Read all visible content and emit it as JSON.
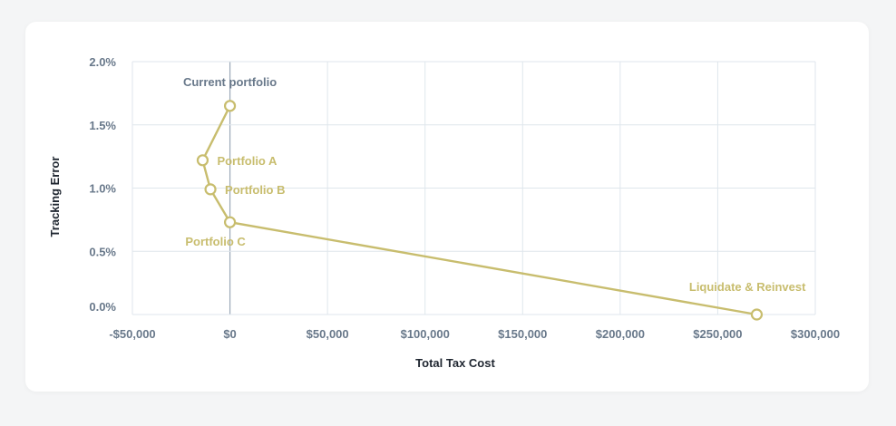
{
  "chart_data": {
    "type": "line",
    "title": "",
    "xlabel": "Total Tax Cost",
    "ylabel": "Tracking Error",
    "xlim": [
      -50000,
      300000
    ],
    "ylim": [
      0,
      2.0
    ],
    "x_ticks": [
      {
        "value": -50000,
        "label": "-$50,000"
      },
      {
        "value": 0,
        "label": "$0"
      },
      {
        "value": 50000,
        "label": "$50,000"
      },
      {
        "value": 100000,
        "label": "$100,000"
      },
      {
        "value": 150000,
        "label": "$150,000"
      },
      {
        "value": 200000,
        "label": "$200,000"
      },
      {
        "value": 250000,
        "label": "$250,000"
      },
      {
        "value": 300000,
        "label": "$300,000"
      }
    ],
    "y_ticks": [
      {
        "value": 0.0,
        "label": "0.0%"
      },
      {
        "value": 0.5,
        "label": "0.5%"
      },
      {
        "value": 1.0,
        "label": "1.0%"
      },
      {
        "value": 1.5,
        "label": "1.5%"
      },
      {
        "value": 2.0,
        "label": "2.0%"
      }
    ],
    "grid": true,
    "series": [
      {
        "color": "#c8bd6e",
        "points": [
          {
            "x": 0,
            "y": 1.65,
            "label": "Current portfolio",
            "label_color": "#68788a",
            "anchor": "above"
          },
          {
            "x": -14000,
            "y": 1.22,
            "label": "Portfolio A",
            "label_color": "#c8bd6e",
            "anchor": "right"
          },
          {
            "x": -10000,
            "y": 0.99,
            "label": "Portfolio B",
            "label_color": "#c8bd6e",
            "anchor": "right"
          },
          {
            "x": 0,
            "y": 0.73,
            "label": "Portfolio C",
            "label_color": "#c8bd6e",
            "anchor": "below"
          },
          {
            "x": 270000,
            "y": 0.0,
            "label": "Liquidate & Reinvest",
            "label_color": "#c8bd6e",
            "anchor": "above"
          }
        ]
      }
    ]
  }
}
